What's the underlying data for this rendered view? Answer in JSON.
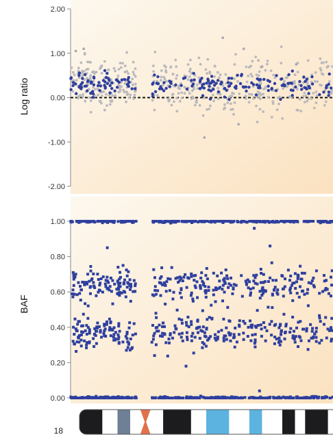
{
  "chart_data": [
    {
      "type": "scatter",
      "title": "",
      "ylabel": "Log ratio",
      "xlabel": "",
      "ylim": [
        -2.0,
        2.0
      ],
      "yticks": [
        "2.00",
        "1.00",
        "0.00",
        "-1.00",
        "-2.00"
      ],
      "reference_line": {
        "y": 0.0,
        "style": "dashed"
      },
      "segments": [
        [
          0,
          25
        ],
        [
          31,
          63
        ],
        [
          63,
          100
        ]
      ],
      "series": [
        {
          "color": "#b9b9bd",
          "center": 0.3,
          "spread": 0.32,
          "points_per_segment": 150
        },
        {
          "color": "#2e3f9e",
          "center": 0.3,
          "spread": 0.13,
          "points_per_segment": 70
        }
      ],
      "outliers": [
        {
          "x": 2,
          "y": 1.05
        },
        {
          "x": 5,
          "y": 1.1
        },
        {
          "x": 58,
          "y": 1.35
        },
        {
          "x": 51,
          "y": -0.9
        },
        {
          "x": 64,
          "y": -0.6
        },
        {
          "x": 66,
          "y": 1.1
        },
        {
          "x": 73,
          "y": 0.7
        },
        {
          "x": 86,
          "y": 0.75
        }
      ],
      "background": [
        "#fdf8ef",
        "#fbe2c0"
      ]
    },
    {
      "type": "scatter",
      "title": "",
      "ylabel": "BAF",
      "xlabel": "",
      "ylim": [
        0.0,
        1.0
      ],
      "yticks": [
        "1.00",
        "0.80",
        "0.60",
        "0.40",
        "0.20",
        "0.00"
      ],
      "segments": [
        [
          0,
          25
        ],
        [
          31,
          63
        ],
        [
          63,
          100
        ]
      ],
      "series": [
        {
          "color": "#2e3f9e",
          "center": 1.0,
          "spread": 0.004,
          "points_per_segment": 110
        },
        {
          "color": "#2e3f9e",
          "center": 0.64,
          "spread": 0.045,
          "points_per_segment": 110
        },
        {
          "color": "#2e3f9e",
          "center": 0.37,
          "spread": 0.045,
          "points_per_segment": 110
        },
        {
          "color": "#2e3f9e",
          "center": 0.0,
          "spread": 0.004,
          "points_per_segment": 110
        }
      ],
      "outliers": [
        {
          "x": 14,
          "y": 0.85
        },
        {
          "x": 32,
          "y": 0.24
        },
        {
          "x": 39,
          "y": 0.56
        },
        {
          "x": 44,
          "y": 0.18
        },
        {
          "x": 70,
          "y": 0.96
        },
        {
          "x": 72,
          "y": 0.04
        },
        {
          "x": 76,
          "y": 0.86
        },
        {
          "x": 20,
          "y": 0.75
        }
      ],
      "background": [
        "#fdf8ef",
        "#fbe2c0"
      ]
    }
  ],
  "ideogram": {
    "label": "18",
    "bands": [
      {
        "from": 0,
        "to": 9,
        "color": "#1c1c1f"
      },
      {
        "from": 9,
        "to": 15,
        "color": "#ffffff"
      },
      {
        "from": 15,
        "to": 20,
        "color": "#6f7f95"
      },
      {
        "from": 20,
        "to": 24,
        "color": "#ffffff"
      },
      {
        "from": 24,
        "to": 28,
        "color": "#e0724a",
        "centromere": true
      },
      {
        "from": 28,
        "to": 33,
        "color": "#ffffff"
      },
      {
        "from": 33,
        "to": 44,
        "color": "#1c1c1f"
      },
      {
        "from": 44,
        "to": 50,
        "color": "#ffffff"
      },
      {
        "from": 50,
        "to": 59,
        "color": "#5cb3e0"
      },
      {
        "from": 59,
        "to": 67,
        "color": "#ffffff"
      },
      {
        "from": 67,
        "to": 72,
        "color": "#5cb3e0"
      },
      {
        "from": 72,
        "to": 80,
        "color": "#ffffff"
      },
      {
        "from": 80,
        "to": 85,
        "color": "#1c1c1f"
      },
      {
        "from": 85,
        "to": 89,
        "color": "#ffffff"
      },
      {
        "from": 89,
        "to": 98,
        "color": "#1c1c1f"
      },
      {
        "from": 98,
        "to": 100,
        "color": "#ffffff"
      }
    ]
  }
}
